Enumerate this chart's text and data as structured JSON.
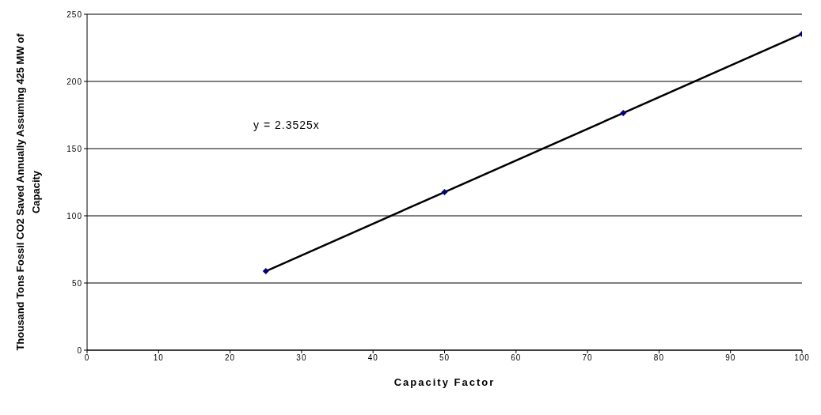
{
  "chart_data": {
    "type": "scatter",
    "xlabel": "Capacity Factor",
    "ylabel": "Thousand Tons Fossil CO2 Saved Annually Assuming 425 MW of Capacity",
    "annotations": [
      "y = 2.3525x"
    ],
    "series": [
      {
        "type": "scatter",
        "color": "#000080",
        "x": [
          25,
          50,
          75,
          100
        ],
        "values": [
          58.8,
          117.6,
          176.4,
          235.3
        ],
        "marker": "diamond"
      },
      {
        "type": "line",
        "color": "#000000",
        "x": [
          25,
          100
        ],
        "values": [
          58.8,
          235.3
        ],
        "marker": "none",
        "line_style": "solid"
      }
    ],
    "xlim": [
      0,
      100
    ],
    "xticks": [
      0,
      10,
      20,
      30,
      40,
      50,
      60,
      70,
      80,
      90,
      100
    ],
    "ylim": [
      0,
      250
    ],
    "yticks": [
      0,
      50,
      100,
      150,
      200,
      250
    ],
    "grid": "y",
    "legend": false
  }
}
